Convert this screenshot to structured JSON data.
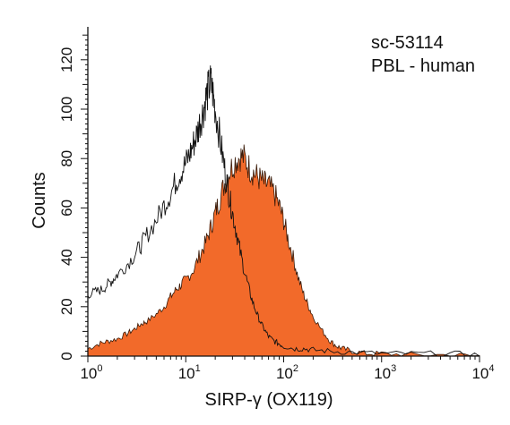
{
  "chart_data": {
    "type": "area",
    "title": "",
    "xlabel": "SIRP-γ (OX119)",
    "ylabel": "Counts",
    "xscale": "log",
    "xlim": [
      1,
      10000
    ],
    "ylim": [
      0,
      130
    ],
    "y_ticks": [
      0,
      20,
      40,
      60,
      80,
      100,
      120
    ],
    "x_ticks": [
      {
        "base": "10",
        "exp": "0"
      },
      {
        "base": "10",
        "exp": "1"
      },
      {
        "base": "10",
        "exp": "2"
      },
      {
        "base": "10",
        "exp": "3"
      },
      {
        "base": "10",
        "exp": "4"
      }
    ],
    "annotations": [
      "sc-53114",
      "PBL - human"
    ],
    "colors": {
      "filled": "#f26a2a",
      "outline": "#111111"
    },
    "series": [
      {
        "style": "filled",
        "points": [
          [
            1,
            3
          ],
          [
            1.3,
            5
          ],
          [
            1.6,
            6
          ],
          [
            2,
            7
          ],
          [
            2.5,
            9
          ],
          [
            3,
            11
          ],
          [
            3.5,
            13
          ],
          [
            4,
            14
          ],
          [
            5,
            17
          ],
          [
            6,
            20
          ],
          [
            7,
            24
          ],
          [
            8,
            27
          ],
          [
            9,
            29
          ],
          [
            10,
            31
          ],
          [
            12,
            35
          ],
          [
            14,
            41
          ],
          [
            16,
            46
          ],
          [
            18,
            52
          ],
          [
            20,
            58
          ],
          [
            22,
            63
          ],
          [
            25,
            70
          ],
          [
            28,
            75
          ],
          [
            32,
            79
          ],
          [
            36,
            81
          ],
          [
            40,
            80
          ],
          [
            45,
            76
          ],
          [
            50,
            74
          ],
          [
            56,
            72
          ],
          [
            63,
            70
          ],
          [
            70,
            69
          ],
          [
            80,
            66
          ],
          [
            90,
            61
          ],
          [
            100,
            55
          ],
          [
            110,
            48
          ],
          [
            125,
            40
          ],
          [
            140,
            32
          ],
          [
            160,
            25
          ],
          [
            180,
            20
          ],
          [
            200,
            16
          ],
          [
            250,
            10
          ],
          [
            300,
            6
          ],
          [
            350,
            4
          ],
          [
            400,
            3
          ],
          [
            500,
            2
          ],
          [
            700,
            1
          ],
          [
            1000,
            1
          ],
          [
            2000,
            0.5
          ],
          [
            5000,
            0.5
          ],
          [
            10000,
            0
          ]
        ]
      },
      {
        "style": "outline",
        "points": [
          [
            1,
            25
          ],
          [
            1.2,
            26
          ],
          [
            1.4,
            27
          ],
          [
            1.6,
            29
          ],
          [
            1.8,
            31
          ],
          [
            2,
            33
          ],
          [
            2.5,
            37
          ],
          [
            3,
            41
          ],
          [
            3.5,
            45
          ],
          [
            4,
            49
          ],
          [
            5,
            55
          ],
          [
            6,
            61
          ],
          [
            7,
            66
          ],
          [
            8,
            71
          ],
          [
            9,
            75
          ],
          [
            10,
            78
          ],
          [
            11,
            82
          ],
          [
            12,
            86
          ],
          [
            13,
            90
          ],
          [
            14,
            95
          ],
          [
            15,
            99
          ],
          [
            16,
            104
          ],
          [
            17,
            108
          ],
          [
            18,
            111
          ],
          [
            19,
            106
          ],
          [
            20,
            100
          ],
          [
            22,
            90
          ],
          [
            24,
            80
          ],
          [
            26,
            72
          ],
          [
            28,
            64
          ],
          [
            30,
            58
          ],
          [
            33,
            50
          ],
          [
            36,
            42
          ],
          [
            40,
            34
          ],
          [
            45,
            26
          ],
          [
            50,
            20
          ],
          [
            56,
            15
          ],
          [
            63,
            11
          ],
          [
            70,
            8
          ],
          [
            80,
            6
          ],
          [
            90,
            5
          ],
          [
            100,
            4
          ],
          [
            130,
            3
          ],
          [
            160,
            3
          ],
          [
            200,
            2.5
          ],
          [
            300,
            2
          ],
          [
            500,
            1.5
          ],
          [
            1000,
            1
          ],
          [
            2000,
            1
          ],
          [
            5000,
            1
          ],
          [
            10000,
            0.5
          ]
        ]
      }
    ]
  }
}
